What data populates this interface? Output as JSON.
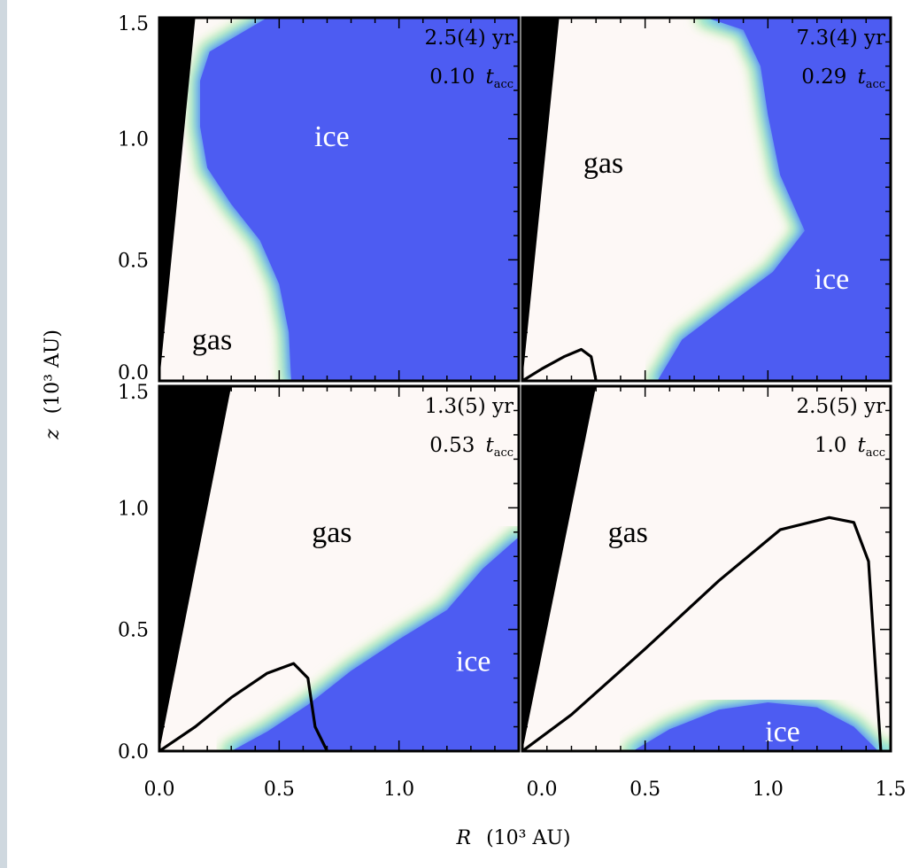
{
  "figure": {
    "x_axis_label": "R",
    "x_axis_unit": "(10³ AU)",
    "y_axis_label": "z",
    "y_axis_unit": "(10³ AU)",
    "x_tick_labels": [
      "0.0",
      "0.5",
      "1.0",
      "0.0",
      "0.5",
      "1.0",
      "1.5"
    ],
    "y_tick_labels": [
      "0.0",
      "0.5",
      "1.0",
      "1.5"
    ]
  },
  "colors": {
    "ice": "#4d5cf2",
    "gas": "#fdf8f6",
    "transition_cyan": "#7fe0ee",
    "transition_green": "#c4f0a6",
    "cavity": "#000000",
    "contour": "#000000",
    "gas_label": "#000000",
    "ice_label": "#ffffff"
  },
  "chart_data": [
    {
      "type": "heatmap",
      "panel": "top-left",
      "time_label": "2.5(4) yr",
      "tacc_fraction": "0.10",
      "tacc_symbol": "t",
      "tacc_subscript": "acc",
      "xlim": [
        0,
        1.5
      ],
      "ylim": [
        0,
        1.5
      ],
      "region_labels": [
        {
          "text": "gas",
          "x": 0.22,
          "y": 0.13,
          "kind": "gas"
        },
        {
          "text": "ice",
          "x": 0.72,
          "y": 0.97,
          "kind": "ice"
        }
      ],
      "cavity_top_R": 0.15,
      "ice_gas_boundary": [
        [
          0.45,
          1.5
        ],
        [
          0.21,
          1.36
        ],
        [
          0.17,
          1.24
        ],
        [
          0.17,
          1.05
        ],
        [
          0.2,
          0.88
        ],
        [
          0.3,
          0.73
        ],
        [
          0.42,
          0.58
        ],
        [
          0.5,
          0.4
        ],
        [
          0.54,
          0.2
        ],
        [
          0.55,
          0.0
        ]
      ],
      "contour": []
    },
    {
      "type": "heatmap",
      "panel": "top-right",
      "time_label": "7.3(4) yr",
      "tacc_fraction": "0.29",
      "tacc_symbol": "t",
      "tacc_subscript": "acc",
      "xlim": [
        0,
        1.5
      ],
      "ylim": [
        0,
        1.5
      ],
      "region_labels": [
        {
          "text": "gas",
          "x": 0.33,
          "y": 0.86,
          "kind": "gas"
        },
        {
          "text": "ice",
          "x": 1.26,
          "y": 0.38,
          "kind": "ice"
        }
      ],
      "cavity_top_R": 0.15,
      "ice_gas_boundary": [
        [
          0.75,
          1.5
        ],
        [
          0.9,
          1.45
        ],
        [
          0.97,
          1.3
        ],
        [
          1.0,
          1.1
        ],
        [
          1.05,
          0.85
        ],
        [
          1.15,
          0.62
        ],
        [
          1.02,
          0.45
        ],
        [
          0.82,
          0.3
        ],
        [
          0.65,
          0.17
        ],
        [
          0.55,
          0.0
        ]
      ],
      "contour": [
        [
          0.0,
          0.0
        ],
        [
          0.08,
          0.05
        ],
        [
          0.17,
          0.1
        ],
        [
          0.24,
          0.13
        ],
        [
          0.28,
          0.1
        ],
        [
          0.3,
          0.0
        ]
      ]
    },
    {
      "type": "heatmap",
      "panel": "bottom-left",
      "time_label": "1.3(5) yr",
      "tacc_fraction": "0.53",
      "tacc_symbol": "t",
      "tacc_subscript": "acc",
      "xlim": [
        0,
        1.5
      ],
      "ylim": [
        0,
        1.5
      ],
      "region_labels": [
        {
          "text": "gas",
          "x": 0.72,
          "y": 0.86,
          "kind": "gas"
        },
        {
          "text": "ice",
          "x": 1.31,
          "y": 0.33,
          "kind": "ice"
        }
      ],
      "cavity_top_R": 0.3,
      "ice_gas_boundary": [
        [
          0.3,
          0.0
        ],
        [
          0.45,
          0.08
        ],
        [
          0.62,
          0.19
        ],
        [
          0.8,
          0.33
        ],
        [
          1.0,
          0.46
        ],
        [
          1.2,
          0.58
        ],
        [
          1.35,
          0.75
        ],
        [
          1.5,
          0.88
        ]
      ],
      "contour": [
        [
          0.0,
          0.0
        ],
        [
          0.15,
          0.1
        ],
        [
          0.3,
          0.22
        ],
        [
          0.45,
          0.32
        ],
        [
          0.56,
          0.36
        ],
        [
          0.62,
          0.3
        ],
        [
          0.65,
          0.1
        ],
        [
          0.7,
          0.0
        ]
      ]
    },
    {
      "type": "heatmap",
      "panel": "bottom-right",
      "time_label": "2.5(5) yr",
      "tacc_fraction": "1.0",
      "tacc_symbol": "t",
      "tacc_subscript": "acc",
      "xlim": [
        0,
        1.5
      ],
      "ylim": [
        0,
        1.5
      ],
      "region_labels": [
        {
          "text": "gas",
          "x": 0.43,
          "y": 0.86,
          "kind": "gas"
        },
        {
          "text": "ice",
          "x": 1.06,
          "y": 0.04,
          "kind": "ice-small"
        }
      ],
      "cavity_top_R": 0.3,
      "ice_gas_boundary": [
        [
          0.45,
          0.0
        ],
        [
          0.6,
          0.09
        ],
        [
          0.8,
          0.17
        ],
        [
          1.0,
          0.2
        ],
        [
          1.2,
          0.18
        ],
        [
          1.35,
          0.1
        ],
        [
          1.45,
          0.0
        ]
      ],
      "contour": [
        [
          0.0,
          0.0
        ],
        [
          0.2,
          0.15
        ],
        [
          0.5,
          0.42
        ],
        [
          0.8,
          0.7
        ],
        [
          1.05,
          0.91
        ],
        [
          1.25,
          0.96
        ],
        [
          1.35,
          0.94
        ],
        [
          1.41,
          0.78
        ],
        [
          1.46,
          0.0
        ]
      ]
    }
  ]
}
